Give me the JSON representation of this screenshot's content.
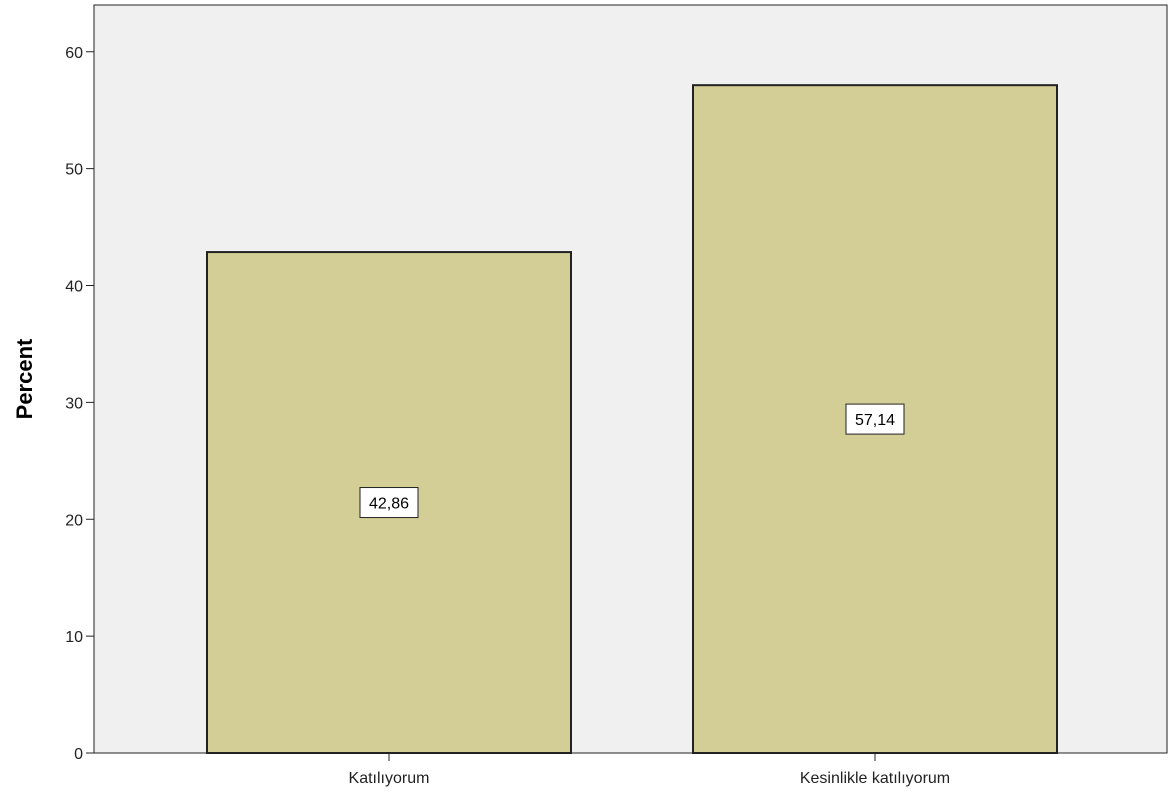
{
  "chart_data": {
    "type": "bar",
    "categories": [
      "Katılıyorum",
      "Kesinlikle katılıyorum"
    ],
    "values": [
      42.86,
      57.14
    ],
    "data_labels": [
      "42,86",
      "57,14"
    ],
    "title": "",
    "xlabel": "",
    "ylabel": "Percent",
    "ylim": [
      0,
      64
    ],
    "yticks": [
      0,
      10,
      20,
      30,
      40,
      50,
      60
    ],
    "grid": false,
    "legend": "none",
    "colors": {
      "bar_fill": "#d3ce96",
      "bar_stroke": "#222222",
      "plot_background": "#f0f0f0",
      "axis": "#222222"
    }
  }
}
